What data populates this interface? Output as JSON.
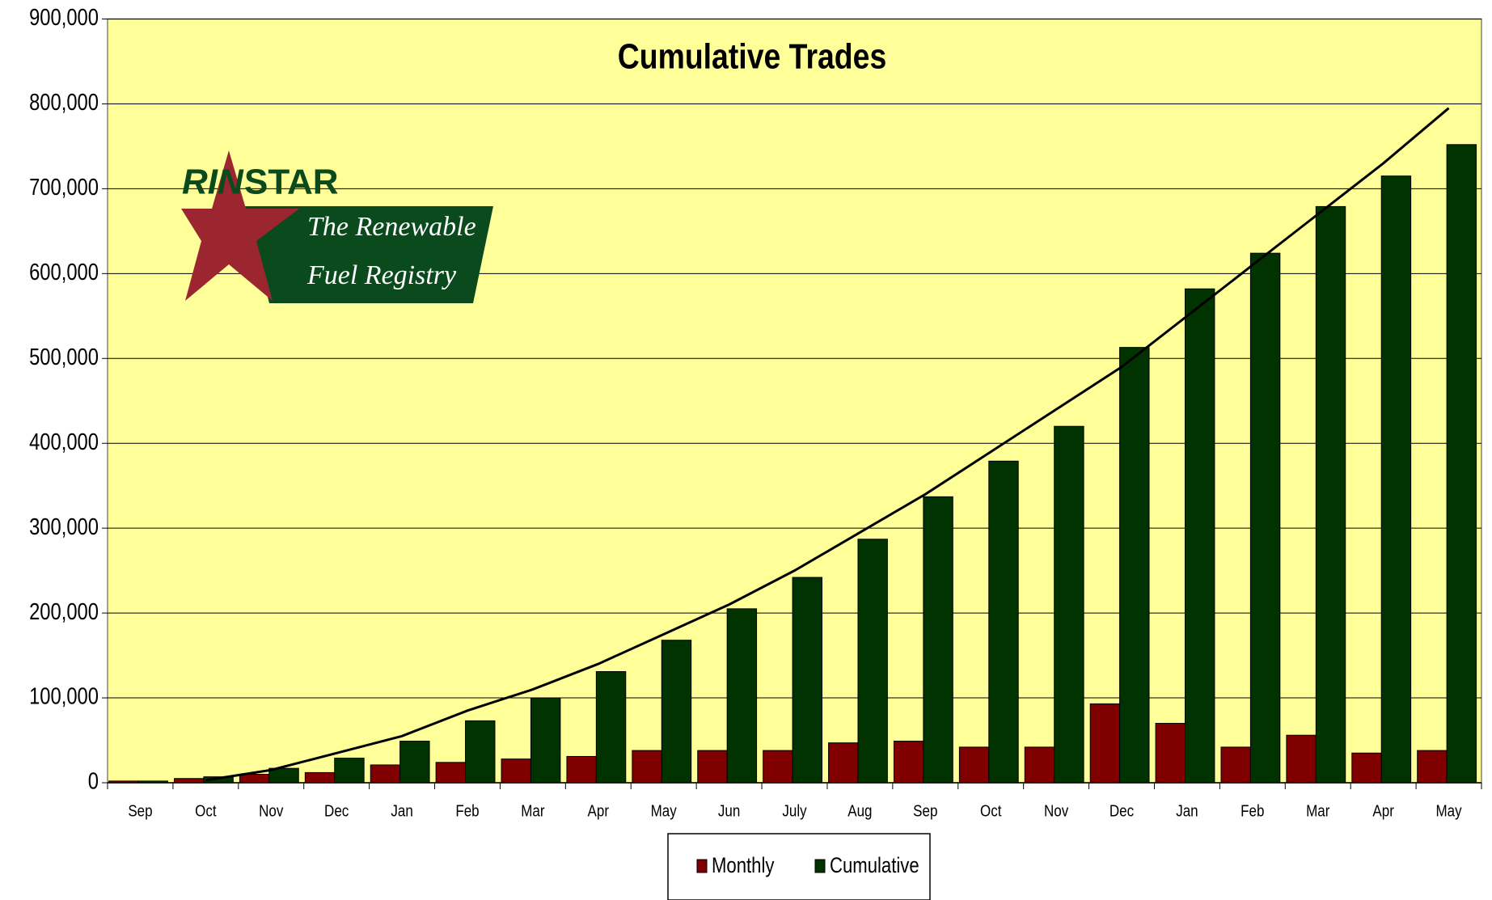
{
  "logo": {
    "brand": [
      "RIN",
      "STAR"
    ],
    "tagline": [
      "The Renewable",
      "Fuel Registry"
    ]
  },
  "chart_data": {
    "type": "bar",
    "title": "Cumulative Trades",
    "categories": [
      "Sep",
      "Oct",
      "Nov",
      "Dec",
      "Jan",
      "Feb",
      "Mar",
      "Apr",
      "May",
      "Jun",
      "July",
      "Aug",
      "Sep",
      "Oct",
      "Nov",
      "Dec",
      "Jan",
      "Feb",
      "Mar",
      "Apr",
      "May"
    ],
    "series": [
      {
        "name": "Monthly",
        "color": "#800000",
        "values": [
          2000,
          5000,
          10000,
          12000,
          21000,
          24000,
          28000,
          31000,
          38000,
          38000,
          38000,
          47000,
          49000,
          42000,
          42000,
          93000,
          70000,
          42000,
          56000,
          35000,
          38000
        ]
      },
      {
        "name": "Cumulative",
        "color": "#003300",
        "values": [
          2000,
          7000,
          17000,
          29000,
          49000,
          73000,
          100000,
          131000,
          168000,
          205000,
          242000,
          287000,
          337000,
          379000,
          420000,
          513000,
          582000,
          624000,
          679000,
          715000,
          752000
        ]
      }
    ],
    "trend": {
      "color": "#000000",
      "values": [
        null,
        3000,
        15000,
        35000,
        55000,
        85000,
        110000,
        140000,
        175000,
        210000,
        250000,
        295000,
        340000,
        390000,
        440000,
        490000,
        550000,
        610000,
        670000,
        730000,
        795000
      ]
    },
    "ylim": [
      0,
      900000
    ],
    "yticks": [
      0,
      {
        "value": 100000,
        "label": "100,000"
      },
      {
        "value": 200000,
        "label": "200,000"
      },
      {
        "value": 300000,
        "label": "300,000"
      },
      {
        "value": 400000,
        "label": "400,000"
      },
      {
        "value": 500000,
        "label": "500,000"
      },
      {
        "value": 600000,
        "label": "600,000"
      },
      {
        "value": 700000,
        "label": "700,000"
      },
      {
        "value": 800000,
        "label": "800,000"
      },
      {
        "value": 900000,
        "label": "900,000"
      }
    ],
    "grid": true,
    "plot_background": "#ffff99"
  }
}
